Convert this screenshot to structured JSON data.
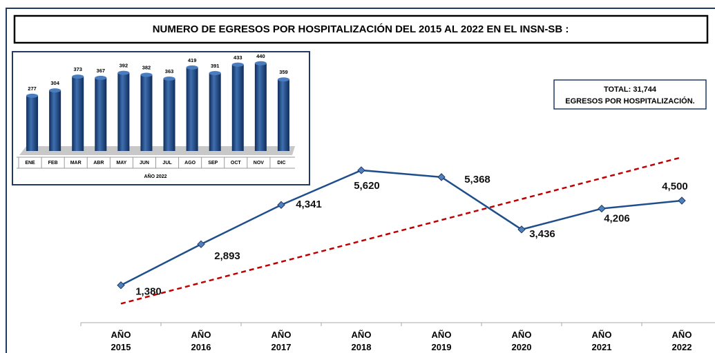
{
  "chart_data": [
    {
      "type": "line",
      "title": "NUMERO DE EGRESOS  POR HOSPITALIZACIÓN  DEL  2015  AL 2022  EN EL INSN-SB :",
      "annotations": [
        "TOTAL:  31,744",
        "EGRESOS POR HOSPITALIZACIÓN."
      ],
      "categories": [
        "AÑO 2015",
        "AÑO 2016",
        "AÑO 2017",
        "AÑO 2018",
        "AÑO 2019",
        "AÑO 2020",
        "AÑO 2021",
        "AÑO 2022"
      ],
      "values": [
        1380,
        2893,
        4341,
        5620,
        5368,
        3436,
        4206,
        4500
      ],
      "value_labels": [
        "1,380",
        "2,893",
        "4,341",
        "5,620",
        "5,368",
        "3,436",
        "4,206",
        "4,500"
      ],
      "color": "#1f4e8c",
      "ylim": [
        0,
        6000
      ],
      "trendline": {
        "values": [
          700,
          6100
        ],
        "color": "#c00000"
      }
    },
    {
      "type": "bar3d",
      "categories": [
        "ENE",
        "FEB",
        "MAR",
        "ABR",
        "MAY",
        "JUN",
        "JUL",
        "AGO",
        "SEP",
        "OCT",
        "NOV",
        "DIC"
      ],
      "values": [
        277,
        304,
        373,
        367,
        392,
        382,
        363,
        419,
        391,
        433,
        440,
        359
      ],
      "xlabel": "AÑO 2022",
      "color": "#1f4e8c",
      "ylim": [
        0,
        460
      ]
    }
  ]
}
